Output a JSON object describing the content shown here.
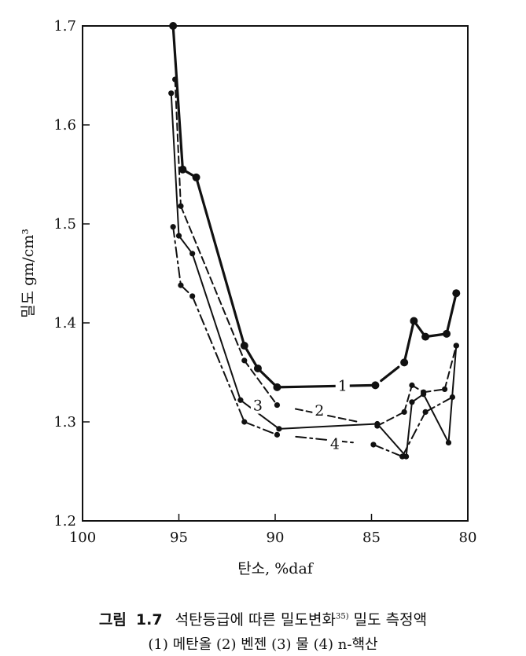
{
  "chart_data": {
    "type": "line",
    "title": "",
    "xlabel": "탄소, %daf",
    "ylabel": "밀도 gm/cm³",
    "xlim": [
      100,
      80
    ],
    "ylim": [
      1.2,
      1.7
    ],
    "x_ticks": [
      100,
      95,
      90,
      85,
      80
    ],
    "y_ticks": [
      1.2,
      1.3,
      1.4,
      1.5,
      1.6,
      1.7
    ],
    "x_tick_labels": [
      "100",
      "95",
      "90",
      "85",
      "80"
    ],
    "y_tick_labels": [
      "1.2",
      "1.3",
      "1.4",
      "1.5",
      "1.6",
      "1.7"
    ],
    "grid": false,
    "series": [
      {
        "name": "1",
        "style": "solid-bold",
        "points": [
          [
            95.3,
            1.7
          ],
          [
            94.8,
            1.555
          ],
          [
            94.1,
            1.547
          ],
          [
            91.6,
            1.377
          ],
          [
            90.9,
            1.354
          ],
          [
            89.9,
            1.335
          ],
          [
            84.8,
            1.337
          ],
          [
            83.3,
            1.36
          ],
          [
            82.8,
            1.402
          ],
          [
            82.2,
            1.386
          ],
          [
            81.1,
            1.389
          ],
          [
            80.6,
            1.43
          ]
        ],
        "gaps_after": [
          6
        ]
      },
      {
        "name": "2",
        "style": "dashed",
        "points": [
          [
            95.2,
            1.646
          ],
          [
            94.9,
            1.518
          ],
          [
            91.6,
            1.362
          ],
          [
            89.9,
            1.317
          ],
          [
            84.7,
            1.296
          ],
          [
            83.3,
            1.31
          ],
          [
            82.9,
            1.337
          ],
          [
            82.3,
            1.33
          ],
          [
            81.2,
            1.333
          ],
          [
            80.6,
            1.377
          ]
        ],
        "gaps_after": [
          3
        ]
      },
      {
        "name": "3",
        "style": "solid",
        "points": [
          [
            95.4,
            1.632
          ],
          [
            95.0,
            1.488
          ],
          [
            94.3,
            1.47
          ],
          [
            91.8,
            1.322
          ],
          [
            89.8,
            1.293
          ],
          [
            84.7,
            1.298
          ],
          [
            83.2,
            1.265
          ],
          [
            82.9,
            1.32
          ],
          [
            82.3,
            1.328
          ],
          [
            81.0,
            1.279
          ],
          [
            80.6,
            1.377
          ]
        ],
        "gaps_after": []
      },
      {
        "name": "4",
        "style": "dash-dot",
        "points": [
          [
            95.3,
            1.497
          ],
          [
            94.9,
            1.438
          ],
          [
            94.3,
            1.427
          ],
          [
            91.6,
            1.3
          ],
          [
            89.9,
            1.287
          ],
          [
            84.9,
            1.277
          ],
          [
            83.4,
            1.265
          ],
          [
            82.2,
            1.31
          ],
          [
            80.8,
            1.325
          ]
        ],
        "gaps_after": [
          4
        ]
      }
    ],
    "annotations": [
      {
        "text": "1",
        "x": 86.5,
        "y": 1.337
      },
      {
        "text": "2",
        "x": 87.7,
        "y": 1.312
      },
      {
        "text": "3",
        "x": 90.9,
        "y": 1.317
      },
      {
        "text": "4",
        "x": 86.9,
        "y": 1.278
      }
    ]
  },
  "caption": {
    "label": "그림",
    "figure_number": "1.7",
    "text": "석탄등급에 따른 밀도변화",
    "reference": "35)",
    "text_after": " 밀도 측정액",
    "line2": "(1) 메탄올 (2) 벤젠 (3) 물 (4) n-핵산"
  }
}
